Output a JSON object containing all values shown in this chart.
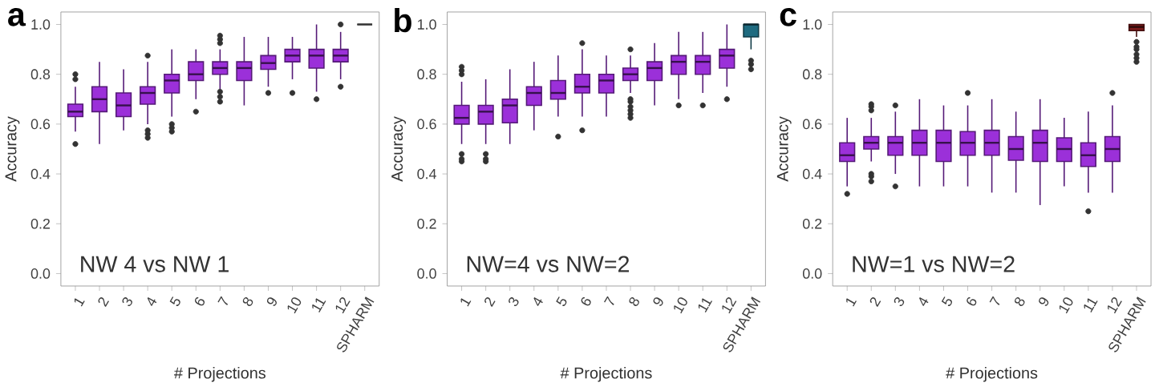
{
  "chart_data": [
    {
      "type": "box",
      "title": "a",
      "xlabel": "# Projections",
      "ylabel": "Accuracy",
      "annotations": [
        "NW 4 vs NW 1"
      ],
      "categories": [
        "1",
        "2",
        "3",
        "4",
        "5",
        "6",
        "7",
        "8",
        "9",
        "10",
        "11",
        "12",
        "SPHARM"
      ],
      "ylim": [
        -0.05,
        1.05
      ],
      "yticks": [
        {
          "value": 0,
          "label": "0.0"
        },
        {
          "value": 0.2,
          "label": "0.2"
        },
        {
          "value": 0.4,
          "label": "0.4"
        },
        {
          "value": 0.6,
          "label": "0.6"
        },
        {
          "value": 0.8,
          "label": "0.8"
        },
        {
          "value": 1,
          "label": "1.0"
        }
      ],
      "colors": [
        "#9b30d9",
        "#9b30d9",
        "#9b30d9",
        "#9b30d9",
        "#9b30d9",
        "#9b30d9",
        "#9b30d9",
        "#9b30d9",
        "#9b30d9",
        "#9b30d9",
        "#9b30d9",
        "#9b30d9",
        "#333333"
      ],
      "boxes": [
        {
          "low": 0.57,
          "q1": 0.63,
          "median": 0.65,
          "q3": 0.68,
          "high": 0.75,
          "outliers": [
            0.52,
            0.78,
            0.8
          ]
        },
        {
          "low": 0.52,
          "q1": 0.65,
          "median": 0.7,
          "q3": 0.75,
          "high": 0.85
        },
        {
          "low": 0.575,
          "q1": 0.63,
          "median": 0.675,
          "q3": 0.725,
          "high": 0.82
        },
        {
          "low": 0.6,
          "q1": 0.68,
          "median": 0.725,
          "q3": 0.75,
          "high": 0.85,
          "outliers": [
            0.545,
            0.56,
            0.575,
            0.875
          ]
        },
        {
          "low": 0.63,
          "q1": 0.725,
          "median": 0.775,
          "q3": 0.8,
          "high": 0.9,
          "outliers": [
            0.57,
            0.585,
            0.6
          ]
        },
        {
          "low": 0.7,
          "q1": 0.775,
          "median": 0.8,
          "q3": 0.85,
          "high": 0.9,
          "outliers": [
            0.65
          ]
        },
        {
          "low": 0.74,
          "q1": 0.8,
          "median": 0.825,
          "q3": 0.85,
          "high": 0.9,
          "outliers": [
            0.69,
            0.71,
            0.73,
            0.925,
            0.94,
            0.955
          ]
        },
        {
          "low": 0.675,
          "q1": 0.775,
          "median": 0.825,
          "q3": 0.85,
          "high": 0.95
        },
        {
          "low": 0.75,
          "q1": 0.82,
          "median": 0.845,
          "q3": 0.875,
          "high": 0.95,
          "outliers": [
            0.725
          ]
        },
        {
          "low": 0.78,
          "q1": 0.85,
          "median": 0.875,
          "q3": 0.9,
          "high": 0.95,
          "outliers": [
            0.725
          ]
        },
        {
          "low": 0.73,
          "q1": 0.825,
          "median": 0.875,
          "q3": 0.9,
          "high": 1.0,
          "outliers": [
            0.7
          ]
        },
        {
          "low": 0.78,
          "q1": 0.85,
          "median": 0.875,
          "q3": 0.9,
          "high": 0.97,
          "outliers": [
            0.75,
            1.0
          ]
        },
        {
          "low": 1.0,
          "q1": 1.0,
          "median": 1.0,
          "q3": 1.0,
          "high": 1.0
        }
      ]
    },
    {
      "type": "box",
      "title": "b",
      "xlabel": "# Projections",
      "ylabel": "Accuracy",
      "annotations": [
        "NW=4 vs NW=2"
      ],
      "categories": [
        "1",
        "2",
        "3",
        "4",
        "5",
        "6",
        "7",
        "8",
        "9",
        "10",
        "11",
        "12",
        "SPHARM"
      ],
      "ylim": [
        -0.05,
        1.05
      ],
      "yticks": [
        {
          "value": 0,
          "label": "0.0"
        },
        {
          "value": 0.2,
          "label": "0.2"
        },
        {
          "value": 0.4,
          "label": "0.4"
        },
        {
          "value": 0.6,
          "label": "0.6"
        },
        {
          "value": 0.8,
          "label": "0.8"
        },
        {
          "value": 1,
          "label": "1.0"
        }
      ],
      "colors": [
        "#9b30d9",
        "#9b30d9",
        "#9b30d9",
        "#9b30d9",
        "#9b30d9",
        "#9b30d9",
        "#9b30d9",
        "#9b30d9",
        "#9b30d9",
        "#9b30d9",
        "#9b30d9",
        "#9b30d9",
        "#1f6b80"
      ],
      "boxes": [
        {
          "low": 0.52,
          "q1": 0.6,
          "median": 0.625,
          "q3": 0.675,
          "high": 0.77,
          "outliers": [
            0.45,
            0.46,
            0.48,
            0.8,
            0.815,
            0.83
          ]
        },
        {
          "low": 0.52,
          "q1": 0.6,
          "median": 0.65,
          "q3": 0.675,
          "high": 0.78,
          "outliers": [
            0.45,
            0.46,
            0.48
          ]
        },
        {
          "low": 0.52,
          "q1": 0.605,
          "median": 0.675,
          "q3": 0.7,
          "high": 0.82
        },
        {
          "low": 0.575,
          "q1": 0.675,
          "median": 0.725,
          "q3": 0.75,
          "high": 0.85
        },
        {
          "low": 0.63,
          "q1": 0.7,
          "median": 0.725,
          "q3": 0.775,
          "high": 0.875,
          "outliers": [
            0.55
          ]
        },
        {
          "low": 0.63,
          "q1": 0.725,
          "median": 0.75,
          "q3": 0.8,
          "high": 0.9,
          "outliers": [
            0.575,
            0.925
          ]
        },
        {
          "low": 0.63,
          "q1": 0.725,
          "median": 0.775,
          "q3": 0.8,
          "high": 0.875
        },
        {
          "low": 0.725,
          "q1": 0.775,
          "median": 0.8,
          "q3": 0.825,
          "high": 0.875,
          "outliers": [
            0.625,
            0.64,
            0.655,
            0.67,
            0.69,
            0.7,
            0.9
          ]
        },
        {
          "low": 0.675,
          "q1": 0.775,
          "median": 0.825,
          "q3": 0.85,
          "high": 0.925
        },
        {
          "low": 0.7,
          "q1": 0.8,
          "median": 0.85,
          "q3": 0.875,
          "high": 0.97,
          "outliers": [
            0.675
          ]
        },
        {
          "low": 0.725,
          "q1": 0.8,
          "median": 0.85,
          "q3": 0.875,
          "high": 0.97,
          "outliers": [
            0.675
          ]
        },
        {
          "low": 0.75,
          "q1": 0.825,
          "median": 0.875,
          "q3": 0.9,
          "high": 1.0,
          "outliers": [
            0.7
          ]
        },
        {
          "low": 0.9,
          "q1": 0.95,
          "median": 1.0,
          "q3": 1.0,
          "high": 1.0,
          "outliers": [
            0.82,
            0.84,
            0.855
          ]
        }
      ]
    },
    {
      "type": "box",
      "title": "c",
      "xlabel": "# Projections",
      "ylabel": "Accuracy",
      "annotations": [
        "NW=1 vs NW=2"
      ],
      "categories": [
        "1",
        "2",
        "3",
        "4",
        "5",
        "6",
        "7",
        "8",
        "9",
        "10",
        "11",
        "12",
        "SPHARM"
      ],
      "ylim": [
        -0.05,
        1.05
      ],
      "yticks": [
        {
          "value": 0,
          "label": "0.0"
        },
        {
          "value": 0.2,
          "label": "0.2"
        },
        {
          "value": 0.4,
          "label": "0.4"
        },
        {
          "value": 0.6,
          "label": "0.6"
        },
        {
          "value": 0.8,
          "label": "0.8"
        },
        {
          "value": 1,
          "label": "1.0"
        }
      ],
      "colors": [
        "#9b30d9",
        "#9b30d9",
        "#9b30d9",
        "#9b30d9",
        "#9b30d9",
        "#9b30d9",
        "#9b30d9",
        "#9b30d9",
        "#9b30d9",
        "#9b30d9",
        "#9b30d9",
        "#9b30d9",
        "#7a1a1a"
      ],
      "boxes": [
        {
          "low": 0.35,
          "q1": 0.45,
          "median": 0.475,
          "q3": 0.525,
          "high": 0.625,
          "outliers": [
            0.32
          ]
        },
        {
          "low": 0.45,
          "q1": 0.5,
          "median": 0.525,
          "q3": 0.55,
          "high": 0.625,
          "outliers": [
            0.37,
            0.39,
            0.4,
            0.655,
            0.67,
            0.68
          ]
        },
        {
          "low": 0.4,
          "q1": 0.475,
          "median": 0.525,
          "q3": 0.55,
          "high": 0.65,
          "outliers": [
            0.35,
            0.675
          ]
        },
        {
          "low": 0.35,
          "q1": 0.475,
          "median": 0.525,
          "q3": 0.575,
          "high": 0.7
        },
        {
          "low": 0.35,
          "q1": 0.45,
          "median": 0.525,
          "q3": 0.575,
          "high": 0.675
        },
        {
          "low": 0.35,
          "q1": 0.475,
          "median": 0.525,
          "q3": 0.57,
          "high": 0.675,
          "outliers": [
            0.725
          ]
        },
        {
          "low": 0.325,
          "q1": 0.475,
          "median": 0.525,
          "q3": 0.575,
          "high": 0.7
        },
        {
          "low": 0.325,
          "q1": 0.455,
          "median": 0.5,
          "q3": 0.55,
          "high": 0.65
        },
        {
          "low": 0.275,
          "q1": 0.45,
          "median": 0.525,
          "q3": 0.575,
          "high": 0.7
        },
        {
          "low": 0.35,
          "q1": 0.45,
          "median": 0.5,
          "q3": 0.545,
          "high": 0.625
        },
        {
          "low": 0.325,
          "q1": 0.43,
          "median": 0.475,
          "q3": 0.525,
          "high": 0.65,
          "outliers": [
            0.25
          ]
        },
        {
          "low": 0.325,
          "q1": 0.45,
          "median": 0.5,
          "q3": 0.55,
          "high": 0.675,
          "outliers": [
            0.725
          ]
        },
        {
          "low": 0.95,
          "q1": 0.975,
          "median": 0.99,
          "q3": 1.0,
          "high": 1.0,
          "outliers": [
            0.85,
            0.865,
            0.88,
            0.9,
            0.91,
            0.93
          ]
        }
      ]
    }
  ]
}
